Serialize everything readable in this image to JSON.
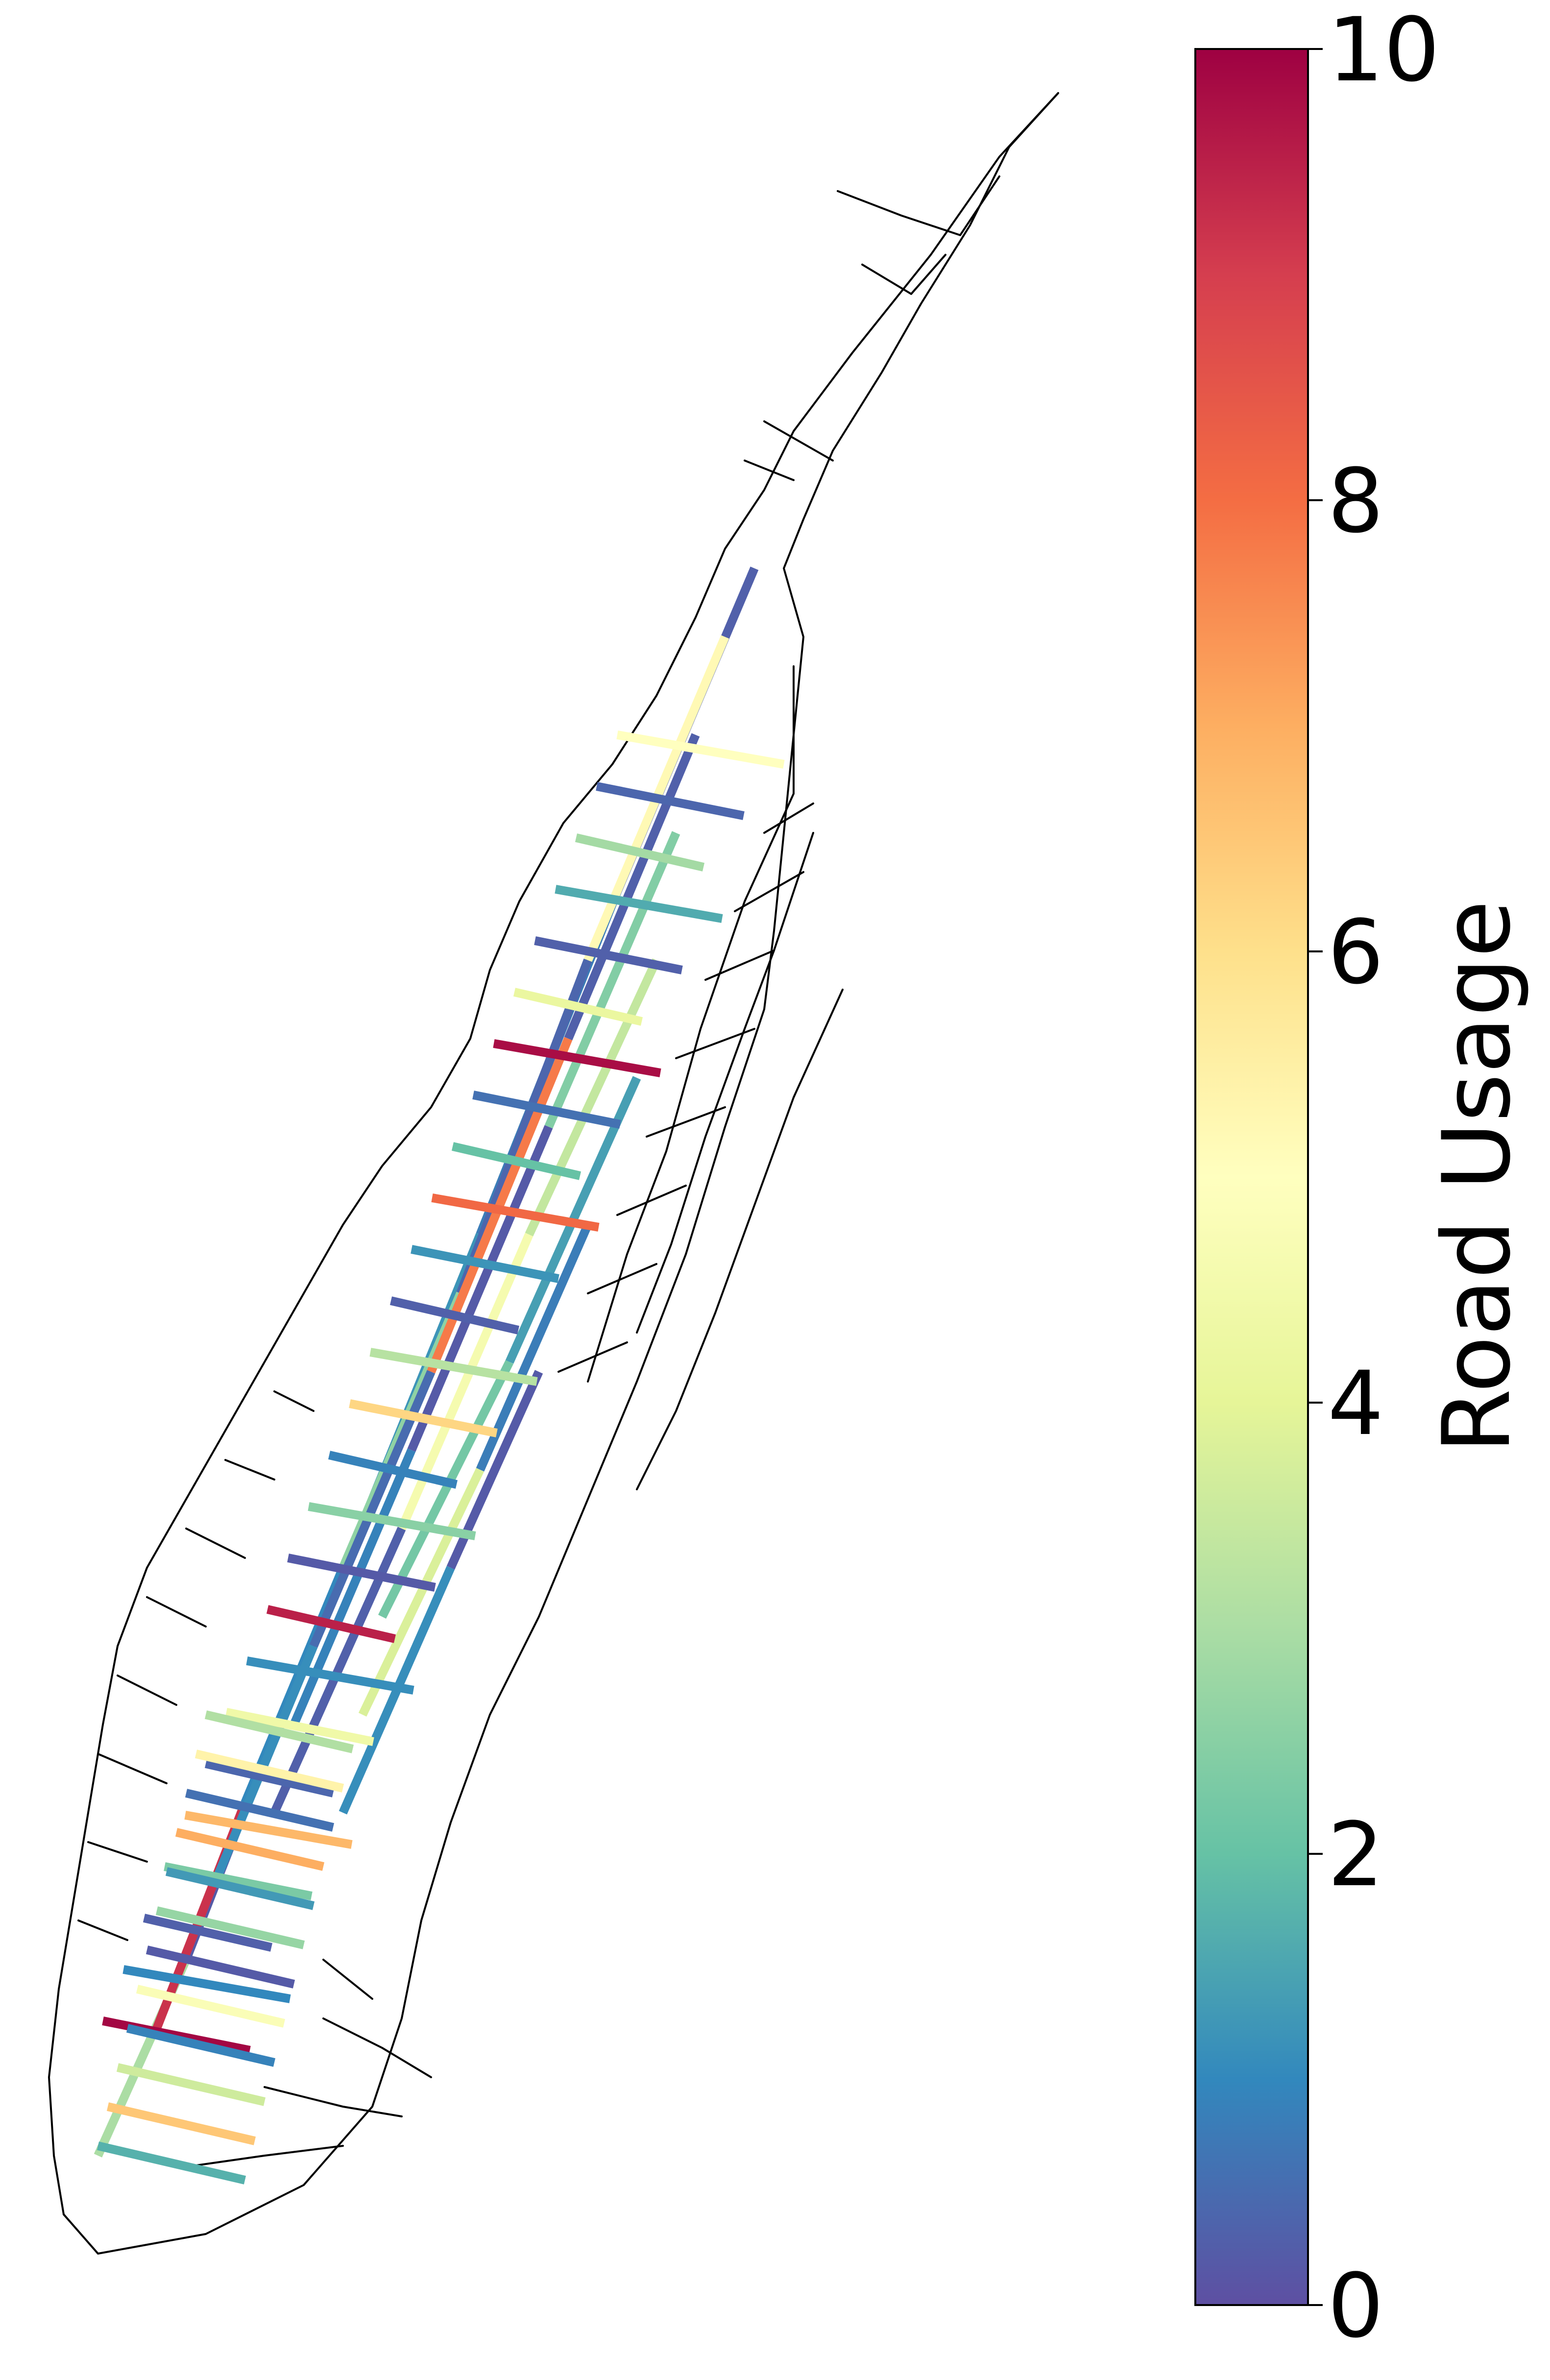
{
  "colorbar": {
    "label": "Road Usage",
    "min": 0,
    "max": 10,
    "ticks": [
      "0",
      "2",
      "4",
      "6",
      "8",
      "10"
    ],
    "colormap": "Spectral_r",
    "stops": [
      "#5e4fa2",
      "#3288bd",
      "#66c2a5",
      "#abdda4",
      "#e6f598",
      "#ffffbf",
      "#fee08b",
      "#fdae61",
      "#f46d43",
      "#d53e4f",
      "#9e0142"
    ]
  },
  "map": {
    "region": "Manhattan",
    "background": "#ffffff",
    "unused_road_color": "#000000",
    "roads": [
      {
        "u": 0.3
      },
      {
        "u": 0.8
      },
      {
        "u": 1.2
      },
      {
        "u": 2.1
      },
      {
        "u": 0.2
      },
      {
        "u": 3.0
      },
      {
        "u": 5.2
      },
      {
        "u": 0.4
      },
      {
        "u": 2.6
      },
      {
        "u": 1.0
      },
      {
        "u": 9.2
      },
      {
        "u": 0.3
      },
      {
        "u": 7.8
      },
      {
        "u": 0.5
      },
      {
        "u": 1.1
      },
      {
        "u": 2.4
      },
      {
        "u": 0.2
      },
      {
        "u": 0.9
      },
      {
        "u": 3.4
      },
      {
        "u": 4.6
      },
      {
        "u": 0.3
      },
      {
        "u": 1.4
      },
      {
        "u": 2.2
      },
      {
        "u": 0.8
      },
      {
        "u": 3.8
      },
      {
        "u": 0.2
      },
      {
        "u": 1.1
      },
      {
        "u": 5.0
      },
      {
        "u": 0.4
      },
      {
        "u": 2.9
      },
      {
        "u": 1.6
      },
      {
        "u": 0.3
      },
      {
        "u": 4.2
      },
      {
        "u": 9.8
      },
      {
        "u": 0.6
      },
      {
        "u": 2.0
      },
      {
        "u": 8.1
      },
      {
        "u": 1.2
      },
      {
        "u": 0.3
      },
      {
        "u": 3.2
      },
      {
        "u": 6.2
      },
      {
        "u": 0.9
      },
      {
        "u": 2.5
      },
      {
        "u": 0.2
      },
      {
        "u": 9.5
      },
      {
        "u": 1.1
      },
      {
        "u": 4.4
      },
      {
        "u": 0.4
      },
      {
        "u": 6.8
      },
      {
        "u": 2.3
      },
      {
        "u": 0.3
      },
      {
        "u": 1.0
      },
      {
        "u": 9.9
      },
      {
        "u": 3.1
      },
      {
        "u": 5.4
      },
      {
        "u": 0.6
      },
      {
        "u": 7.0
      },
      {
        "u": 1.3
      },
      {
        "u": 2.7
      },
      {
        "u": 0.2
      },
      {
        "u": 4.8
      },
      {
        "u": 0.9
      },
      {
        "u": 3.6
      },
      {
        "u": 6.5
      },
      {
        "u": 1.7
      },
      {
        "u": 0.3
      },
      {
        "u": 9.0
      },
      {
        "u": 2.2
      },
      {
        "u": 0.5
      },
      {
        "u": 4.1
      },
      {
        "u": 1.1
      },
      {
        "u": 0.2
      }
    ]
  }
}
